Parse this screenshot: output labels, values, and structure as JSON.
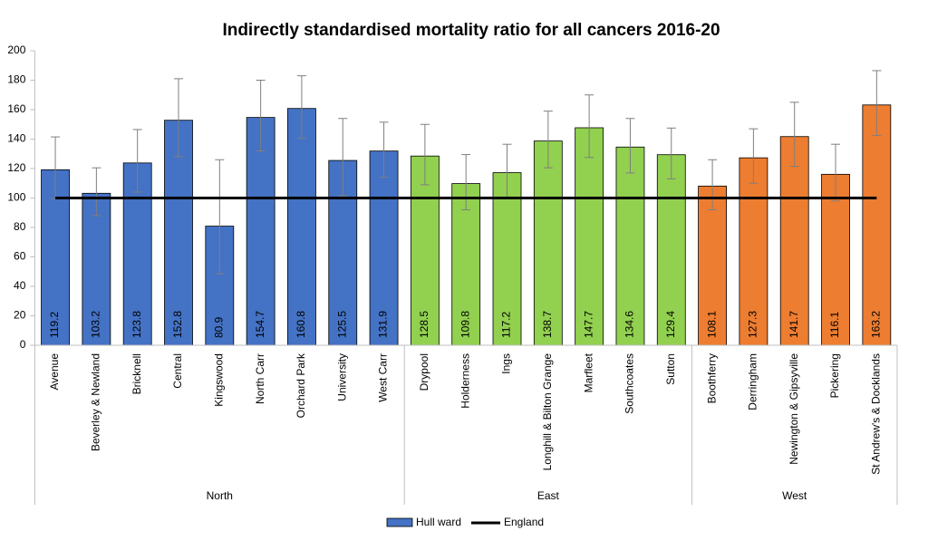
{
  "chart_data": {
    "type": "bar",
    "title": "Indirectly standardised mortality ratio for all cancers 2016-20",
    "ylim": [
      0,
      200
    ],
    "yticks": [
      0,
      20,
      40,
      60,
      80,
      100,
      120,
      140,
      160,
      180,
      200
    ],
    "series_name": "Hull ward",
    "legend_position": "bottom",
    "reference": {
      "name": "England",
      "value": 100,
      "color": "#000000"
    },
    "groups": [
      {
        "name": "North",
        "color": "#4472c4",
        "categories": [
          "Avenue",
          "Beverley & Newland",
          "Bricknell",
          "Central",
          "Kingswood",
          "North Carr",
          "Orchard Park",
          "University",
          "West Carr"
        ],
        "values": [
          119.2,
          103.2,
          123.8,
          152.8,
          80.9,
          154.7,
          160.8,
          125.5,
          131.9
        ],
        "lower": [
          99.5,
          88,
          104,
          128,
          48.5,
          132,
          140.5,
          101.5,
          114
        ],
        "upper": [
          141.5,
          120.5,
          146.5,
          181,
          126,
          180,
          183,
          154,
          151.5
        ]
      },
      {
        "name": "East",
        "color": "#92d050",
        "categories": [
          "Drypool",
          "Holderness",
          "Ings",
          "Longhill & Bilton Grange",
          "Marfleet",
          "Southcoates",
          "Sutton"
        ],
        "values": [
          128.5,
          109.8,
          117.2,
          138.7,
          147.7,
          134.6,
          129.4
        ],
        "lower": [
          109,
          92,
          99.5,
          120.5,
          127.5,
          117,
          113
        ],
        "upper": [
          150,
          129.5,
          136.5,
          159,
          170,
          154,
          147.5
        ]
      },
      {
        "name": "West",
        "color": "#ed7d31",
        "categories": [
          "Boothferry",
          "Derringham",
          "Newington & Gipsyville",
          "Pickering",
          "St Andrew's & Docklands"
        ],
        "values": [
          108.1,
          127.3,
          141.7,
          116.1,
          163.2
        ],
        "lower": [
          92,
          110,
          121.5,
          98,
          142.5
        ],
        "upper": [
          126,
          147,
          165,
          136.5,
          186.5
        ]
      }
    ]
  }
}
